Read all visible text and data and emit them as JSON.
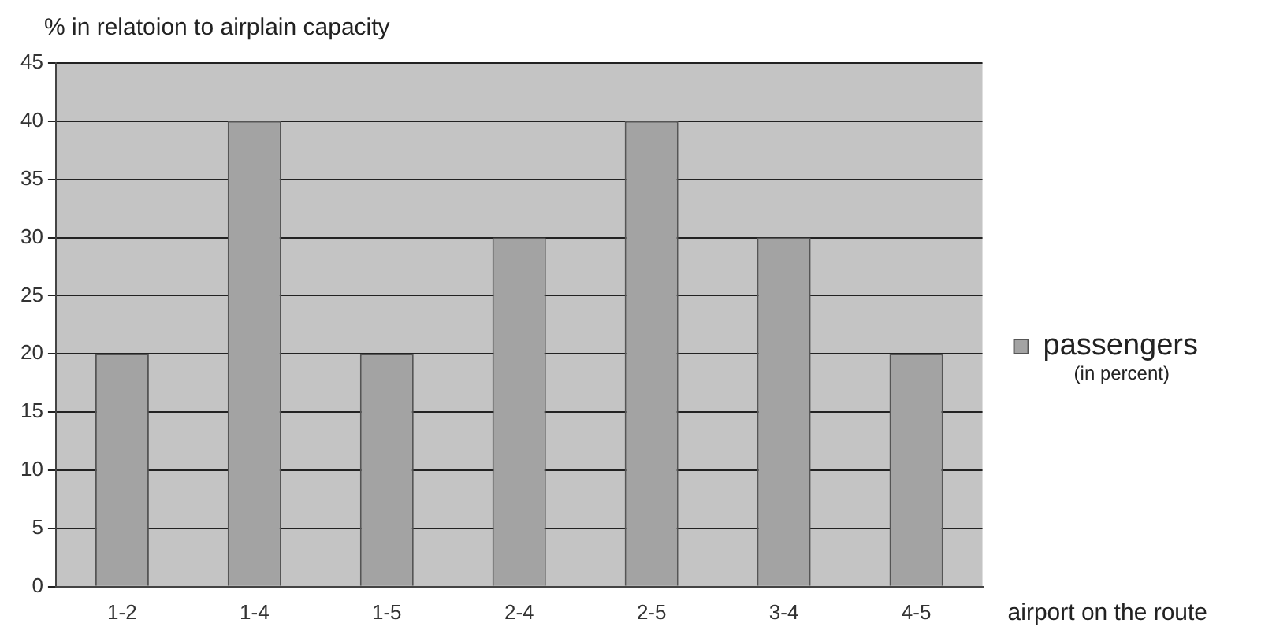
{
  "chart_data": {
    "type": "bar",
    "ylabel": "% in relatoion to airplain capacity",
    "xlabel": "airport on the route",
    "categories": [
      "1-2",
      "1-4",
      "1-5",
      "2-4",
      "2-5",
      "3-4",
      "4-5"
    ],
    "series": [
      {
        "name": "passengers",
        "color": "#a3a3a3",
        "values": [
          20,
          40,
          20,
          30,
          40,
          30,
          20
        ]
      }
    ],
    "ylim": [
      0,
      45
    ],
    "yticks": [
      0,
      5,
      10,
      15,
      20,
      25,
      30,
      35,
      40,
      45
    ],
    "grid": "y",
    "legend": "right",
    "annotations": [
      "(in percent)"
    ]
  }
}
